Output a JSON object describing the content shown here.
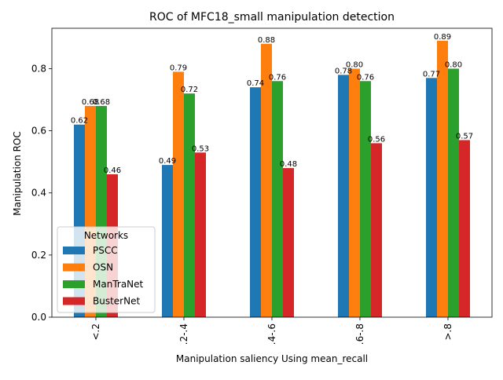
{
  "chart_data": {
    "type": "bar",
    "title": "ROC of MFC18_small manipulation detection",
    "xlabel": "Manipulation saliency Using mean_recall",
    "ylabel": "Manipulation ROC",
    "categories": [
      "<.2",
      ".2-.4",
      ".4-.6",
      ".6-.8",
      ">.8"
    ],
    "ylim": [
      0,
      0.93
    ],
    "yticks": [
      "0.0",
      "0.2",
      "0.4",
      "0.6",
      "0.8"
    ],
    "grid": false,
    "legend": {
      "title": "Networks",
      "placement": "lower-left"
    },
    "series": [
      {
        "name": "PSCC",
        "color": "#1f77b4",
        "values": [
          0.62,
          0.49,
          0.74,
          0.78,
          0.77
        ],
        "labels": [
          "0.62",
          "0.49",
          "0.74",
          "0.78",
          "0.77"
        ]
      },
      {
        "name": "OSN",
        "color": "#ff7f0e",
        "values": [
          0.68,
          0.79,
          0.88,
          0.8,
          0.89
        ],
        "labels": [
          "0.68",
          "0.79",
          "0.88",
          "0.80",
          "0.89"
        ]
      },
      {
        "name": "ManTraNet",
        "color": "#2ca02c",
        "values": [
          0.68,
          0.72,
          0.76,
          0.76,
          0.8
        ],
        "labels": [
          "0.68",
          "0.72",
          "0.76",
          "0.76",
          "0.80"
        ]
      },
      {
        "name": "BusterNet",
        "color": "#d62728",
        "values": [
          0.46,
          0.53,
          0.48,
          0.56,
          0.57
        ],
        "labels": [
          "0.46",
          "0.53",
          "0.48",
          "0.56",
          "0.57"
        ]
      }
    ]
  }
}
